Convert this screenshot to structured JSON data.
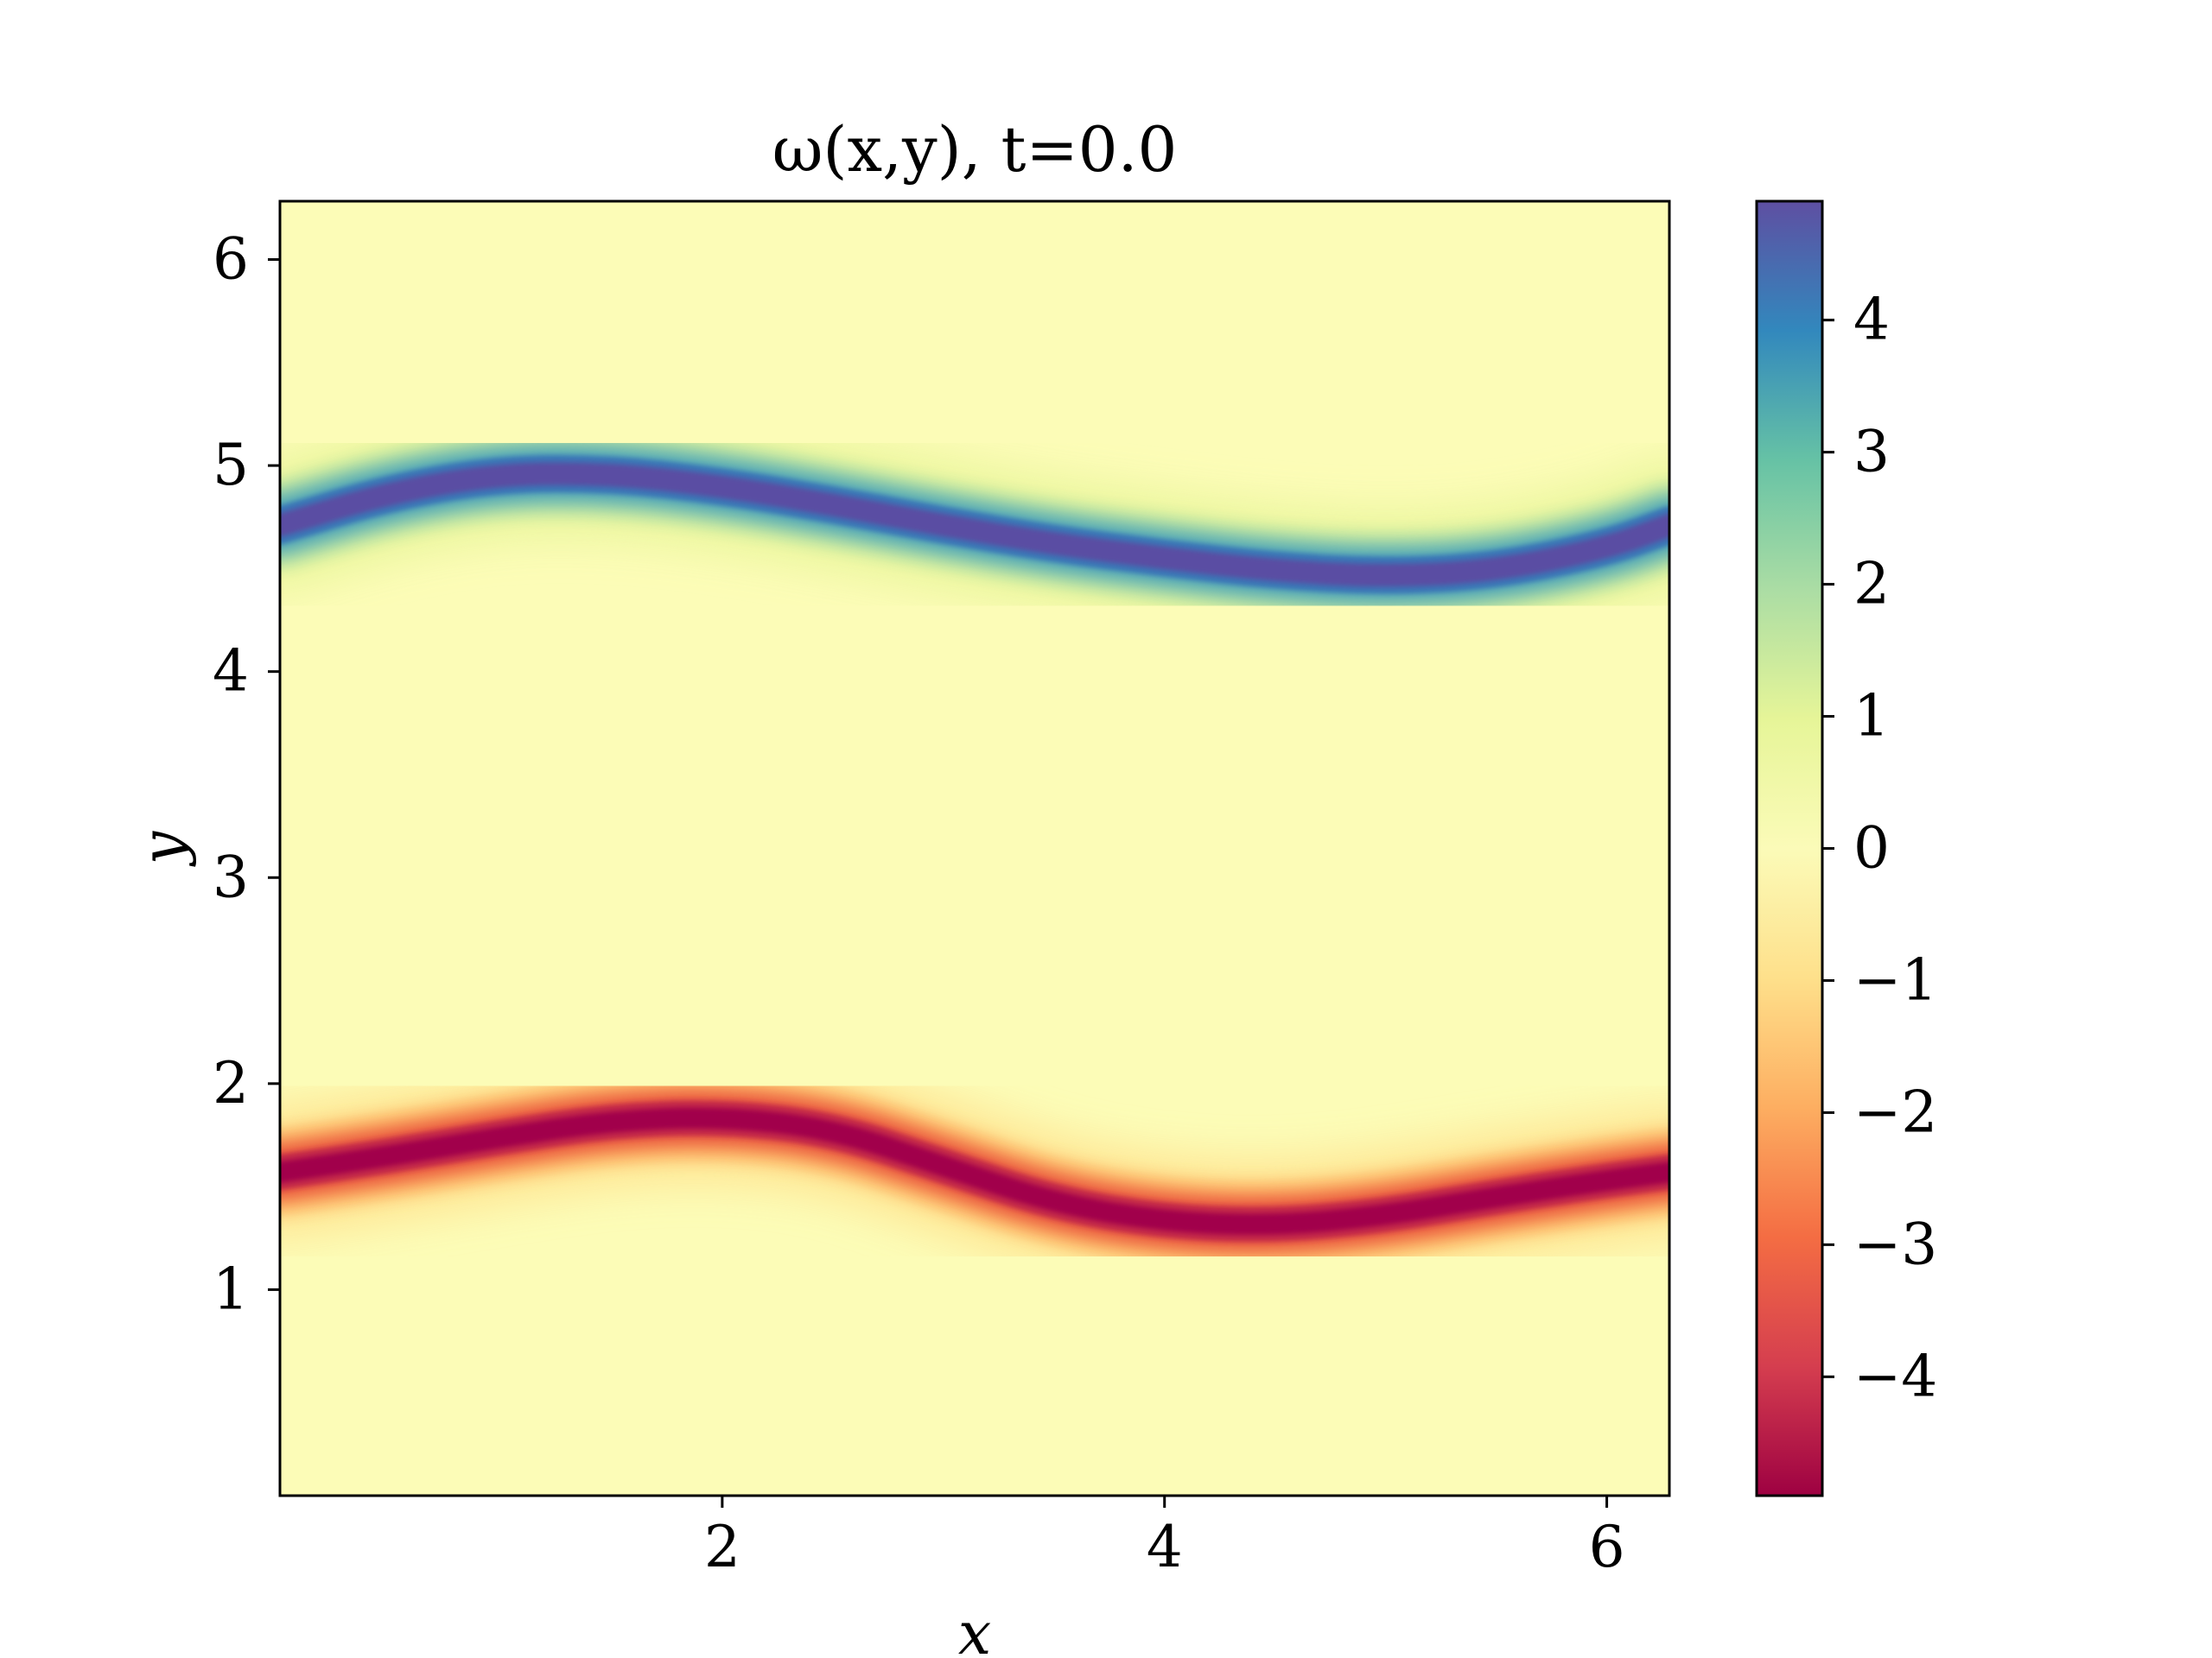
{
  "chart_data": {
    "type": "heatmap",
    "title": "ω(x,y),    t=0.0",
    "xlabel": "x",
    "ylabel": "y",
    "xlim": [
      0.0,
      6.283
    ],
    "ylim": [
      0.0,
      6.283
    ],
    "x_ticks": [
      2,
      4,
      6
    ],
    "y_ticks": [
      1,
      2,
      3,
      4,
      5,
      6
    ],
    "colormap": "Spectral",
    "colorbar": {
      "range": [
        -4.9,
        4.9
      ],
      "ticks": [
        4,
        3,
        2,
        1,
        0,
        -1,
        -2,
        -3,
        -4
      ],
      "tick_labels": [
        "4",
        "3",
        "2",
        "1",
        "0",
        "−1",
        "−2",
        "−3",
        "−4"
      ]
    },
    "bands": [
      {
        "sign": "negative",
        "peak_value": -4.9,
        "centerline": [
          {
            "x": 0.0,
            "y": 1.57
          },
          {
            "x": 0.5,
            "y": 1.65
          },
          {
            "x": 1.0,
            "y": 1.74
          },
          {
            "x": 1.5,
            "y": 1.82
          },
          {
            "x": 2.0,
            "y": 1.84
          },
          {
            "x": 2.5,
            "y": 1.78
          },
          {
            "x": 3.0,
            "y": 1.6
          },
          {
            "x": 3.5,
            "y": 1.42
          },
          {
            "x": 4.0,
            "y": 1.33
          },
          {
            "x": 4.5,
            "y": 1.31
          },
          {
            "x": 5.0,
            "y": 1.36
          },
          {
            "x": 5.5,
            "y": 1.45
          },
          {
            "x": 6.0,
            "y": 1.53
          },
          {
            "x": 6.283,
            "y": 1.57
          }
        ]
      },
      {
        "sign": "positive",
        "peak_value": 4.9,
        "centerline": [
          {
            "x": 0.0,
            "y": 4.71
          },
          {
            "x": 0.5,
            "y": 4.87
          },
          {
            "x": 1.0,
            "y": 4.96
          },
          {
            "x": 1.5,
            "y": 4.96
          },
          {
            "x": 2.0,
            "y": 4.9
          },
          {
            "x": 2.5,
            "y": 4.81
          },
          {
            "x": 3.0,
            "y": 4.71
          },
          {
            "x": 3.5,
            "y": 4.62
          },
          {
            "x": 4.0,
            "y": 4.55
          },
          {
            "x": 4.5,
            "y": 4.49
          },
          {
            "x": 5.0,
            "y": 4.46
          },
          {
            "x": 5.5,
            "y": 4.49
          },
          {
            "x": 6.0,
            "y": 4.6
          },
          {
            "x": 6.283,
            "y": 4.71
          }
        ]
      }
    ],
    "colors": {
      "background": "#fcfcb7",
      "negative_peak": "#a1004b",
      "positive_peak": "#5a4da3",
      "frame": "#000000"
    }
  }
}
